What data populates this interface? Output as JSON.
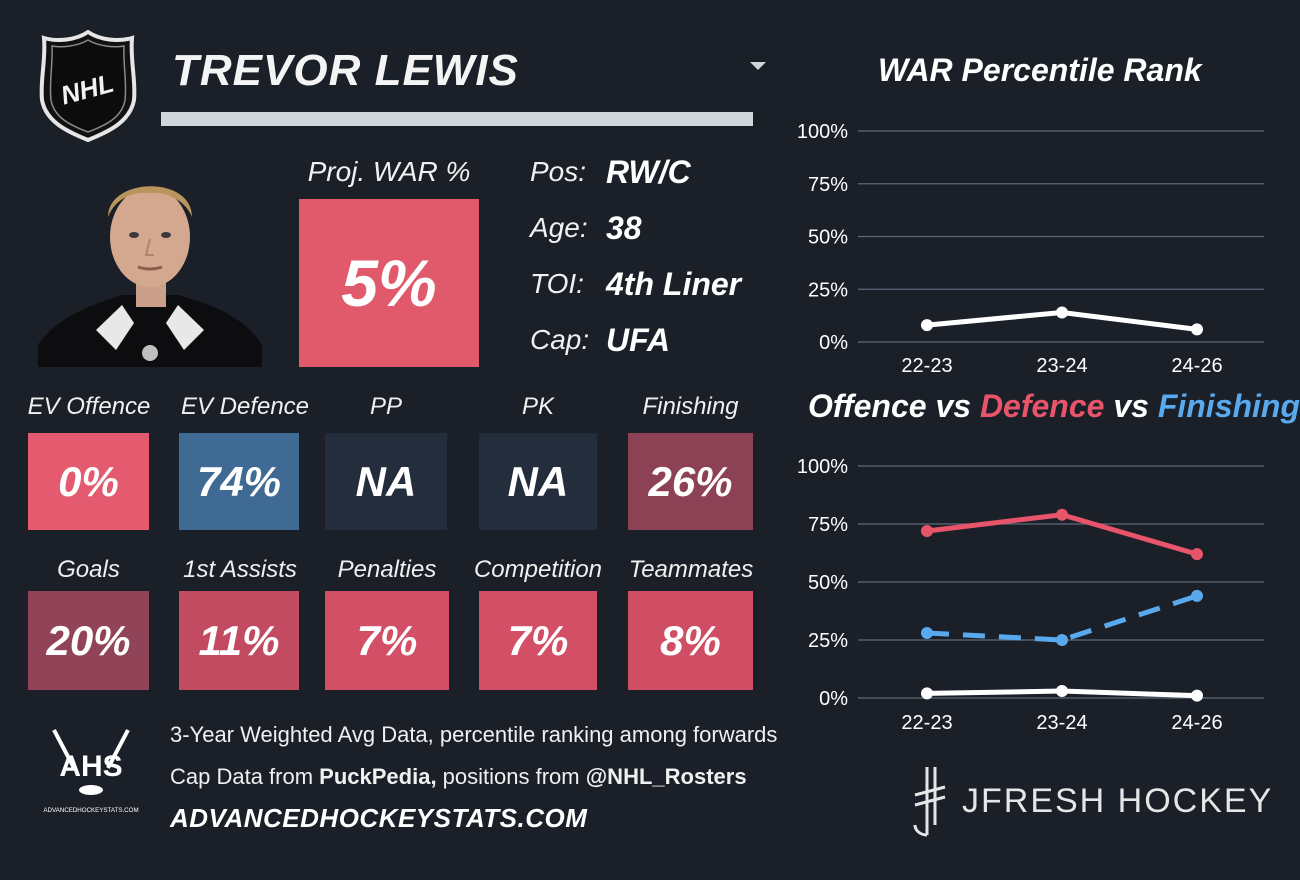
{
  "header": {
    "league_logo_text": "NHL",
    "player_name": "TREVOR LEWIS"
  },
  "projection": {
    "label": "Proj. WAR %",
    "value": "5%",
    "color": "#e05a6c"
  },
  "bio": [
    {
      "label": "Pos:",
      "value": "RW/C"
    },
    {
      "label": "Age:",
      "value": "38"
    },
    {
      "label": "TOI:",
      "value": "4th Liner"
    },
    {
      "label": "Cap:",
      "value": "UFA"
    }
  ],
  "stats_row1": [
    {
      "label": "EV Offence",
      "value": "0%",
      "color": "#e45a6e"
    },
    {
      "label": "EV Defence",
      "value": "74%",
      "color": "#3f6a93"
    },
    {
      "label": "PP",
      "value": "NA",
      "color": "#232d3b"
    },
    {
      "label": "PK",
      "value": "NA",
      "color": "#232d3b"
    },
    {
      "label": "Finishing",
      "value": "26%",
      "color": "#8d4155"
    }
  ],
  "stats_row2": [
    {
      "label": "Goals",
      "value": "20%",
      "color": "#914458"
    },
    {
      "label": "1st Assists",
      "value": "11%",
      "color": "#c24a61"
    },
    {
      "label": "Penalties",
      "value": "7%",
      "color": "#d24f65"
    },
    {
      "label": "Competition",
      "value": "7%",
      "color": "#d24f65"
    },
    {
      "label": "Teammates",
      "value": "8%",
      "color": "#cf4e64"
    }
  ],
  "footer": {
    "ahs_logo_text": "AHS",
    "ahs_logo_subtext": "ADVANCEDHOCKEYSTATS.COM",
    "line1": "3-Year Weighted Avg Data, percentile ranking among forwards",
    "line2_prefix": "Cap Data from ",
    "line2_source1": "PuckPedia,",
    "line2_middle": " positions from ",
    "line2_source2": "@NHL_Rosters",
    "website": "ADVANCEDHOCKEYSTATS.COM",
    "brand": "JFRESH HOCKEY"
  },
  "chart_data": [
    {
      "type": "line",
      "title": "WAR Percentile Rank",
      "x": [
        "22-23",
        "23-24",
        "24-26"
      ],
      "y_ticks": [
        "0%",
        "25%",
        "50%",
        "75%",
        "100%"
      ],
      "ylim": [
        0,
        100
      ],
      "grid": true,
      "series": [
        {
          "values": [
            8,
            14,
            6
          ],
          "color": "#ffffff",
          "style": "solid"
        }
      ]
    },
    {
      "type": "line",
      "title_parts": [
        {
          "text": "Offence vs ",
          "color": "#ffffff"
        },
        {
          "text": "Defence",
          "color": "#e8546a"
        },
        {
          "text": " vs ",
          "color": "#ffffff"
        },
        {
          "text": "Finishing",
          "color": "#59a9ee"
        }
      ],
      "x": [
        "22-23",
        "23-24",
        "24-26"
      ],
      "y_ticks": [
        "0%",
        "25%",
        "50%",
        "75%",
        "100%"
      ],
      "ylim": [
        0,
        100
      ],
      "grid": true,
      "series": [
        {
          "name": "Offence",
          "values": [
            2,
            3,
            1
          ],
          "color": "#ffffff",
          "style": "solid"
        },
        {
          "name": "Defence",
          "values": [
            72,
            79,
            62
          ],
          "color": "#e8546a",
          "style": "solid"
        },
        {
          "name": "Finishing",
          "values": [
            28,
            25,
            44
          ],
          "color": "#59a9ee",
          "style": "dashed"
        }
      ]
    }
  ]
}
